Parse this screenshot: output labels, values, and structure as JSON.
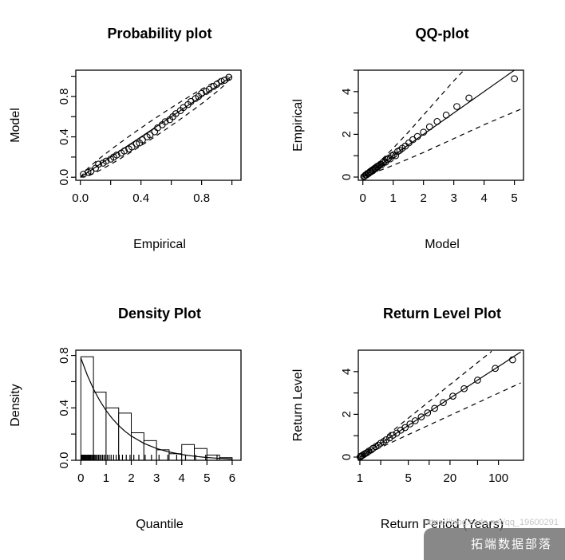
{
  "colors": {
    "foreground": "#000000",
    "background": "#ffffff",
    "watermark_bg": "#6e6e6e",
    "watermark_text": "#ffffff",
    "url_text": "#c6c6c6"
  },
  "watermark": {
    "brand": "拓端数据部落",
    "url": "https://blog.csdn.net/qq_19600291"
  },
  "chart_data": [
    {
      "id": "probability-plot",
      "type": "scatter",
      "title": "Probability plot",
      "xlabel": "Empirical",
      "ylabel": "Model",
      "xlim": [
        -0.03,
        1.06
      ],
      "ylim": [
        -0.03,
        1.06
      ],
      "grid": false,
      "legend": "none",
      "xticks": [
        {
          "v": 0.0,
          "l": "0.0"
        },
        {
          "v": 0.2,
          "l": ""
        },
        {
          "v": 0.4,
          "l": "0.4"
        },
        {
          "v": 0.6,
          "l": ""
        },
        {
          "v": 0.8,
          "l": "0.8"
        },
        {
          "v": 1.0,
          "l": ""
        }
      ],
      "yticks": [
        {
          "v": 0.0,
          "l": "0.0"
        },
        {
          "v": 0.2,
          "l": ""
        },
        {
          "v": 0.4,
          "l": "0.4"
        },
        {
          "v": 0.6,
          "l": ""
        },
        {
          "v": 0.8,
          "l": "0.8"
        },
        {
          "v": 1.0,
          "l": ""
        }
      ],
      "lines": [
        {
          "name": "one-to-one-line",
          "style": "solid",
          "x": [
            0,
            1
          ],
          "y": [
            0,
            1
          ]
        },
        {
          "name": "upper-band",
          "style": "dashed",
          "x": [
            0,
            0.05,
            0.1,
            0.15,
            0.2,
            0.25,
            0.3,
            0.35,
            0.4,
            0.45,
            0.5,
            0.55,
            0.6,
            0.65,
            0.7,
            0.75,
            0.8,
            0.85,
            0.9,
            0.95,
            1
          ],
          "y": [
            0,
            0.089,
            0.154,
            0.214,
            0.272,
            0.328,
            0.382,
            0.436,
            0.488,
            0.54,
            0.59,
            0.64,
            0.688,
            0.736,
            0.782,
            0.828,
            0.872,
            0.914,
            0.954,
            0.989,
            1
          ]
        },
        {
          "name": "lower-band",
          "style": "dashed",
          "x": [
            0,
            0.05,
            0.1,
            0.15,
            0.2,
            0.25,
            0.3,
            0.35,
            0.4,
            0.45,
            0.5,
            0.55,
            0.6,
            0.65,
            0.7,
            0.75,
            0.8,
            0.85,
            0.9,
            0.95,
            1
          ],
          "y": [
            0,
            0.011,
            0.046,
            0.086,
            0.128,
            0.172,
            0.218,
            0.264,
            0.312,
            0.36,
            0.41,
            0.46,
            0.512,
            0.564,
            0.618,
            0.672,
            0.728,
            0.786,
            0.846,
            0.911,
            1
          ]
        }
      ],
      "points": {
        "x": [
          0.02,
          0.05,
          0.07,
          0.1,
          0.12,
          0.15,
          0.17,
          0.2,
          0.22,
          0.24,
          0.27,
          0.29,
          0.32,
          0.34,
          0.37,
          0.39,
          0.41,
          0.44,
          0.46,
          0.49,
          0.51,
          0.54,
          0.56,
          0.59,
          0.61,
          0.63,
          0.66,
          0.68,
          0.71,
          0.73,
          0.76,
          0.78,
          0.8,
          0.83,
          0.85,
          0.88,
          0.9,
          0.93,
          0.95,
          0.98
        ],
        "y": [
          0.03,
          0.05,
          0.06,
          0.09,
          0.13,
          0.14,
          0.16,
          0.18,
          0.2,
          0.22,
          0.24,
          0.26,
          0.28,
          0.3,
          0.33,
          0.34,
          0.37,
          0.4,
          0.42,
          0.45,
          0.49,
          0.52,
          0.55,
          0.57,
          0.6,
          0.63,
          0.66,
          0.69,
          0.72,
          0.75,
          0.78,
          0.8,
          0.83,
          0.85,
          0.87,
          0.9,
          0.92,
          0.95,
          0.96,
          0.99
        ]
      }
    },
    {
      "id": "qq-plot",
      "type": "scatter",
      "title": "QQ-plot",
      "xlabel": "Model",
      "ylabel": "Empirical",
      "xlim": [
        -0.15,
        5.3
      ],
      "ylim": [
        -0.15,
        5.0
      ],
      "grid": false,
      "legend": "none",
      "xticks": [
        {
          "v": 0,
          "l": "0"
        },
        {
          "v": 1,
          "l": "1"
        },
        {
          "v": 2,
          "l": "2"
        },
        {
          "v": 3,
          "l": "3"
        },
        {
          "v": 4,
          "l": "4"
        },
        {
          "v": 5,
          "l": "5"
        }
      ],
      "yticks": [
        {
          "v": 0,
          "l": "0"
        },
        {
          "v": 1,
          "l": ""
        },
        {
          "v": 2,
          "l": "2"
        },
        {
          "v": 3,
          "l": ""
        },
        {
          "v": 4,
          "l": "4"
        },
        {
          "v": 5,
          "l": ""
        }
      ],
      "lines": [
        {
          "name": "one-to-one-line",
          "style": "solid",
          "x": [
            0,
            5.0
          ],
          "y": [
            0,
            5.0
          ]
        },
        {
          "name": "upper-band",
          "style": "dashed",
          "x": [
            0,
            0.5,
            1,
            1.5,
            2,
            2.5,
            3,
            3.3
          ],
          "y": [
            0,
            0.65,
            1.35,
            2.1,
            2.9,
            3.7,
            4.5,
            4.95
          ]
        },
        {
          "name": "lower-band",
          "style": "dashed",
          "x": [
            0,
            1,
            2,
            3,
            4,
            5,
            5.25
          ],
          "y": [
            0,
            0.55,
            1.15,
            1.8,
            2.45,
            3.05,
            3.2
          ]
        }
      ],
      "points": {
        "x": [
          0.03,
          0.06,
          0.09,
          0.12,
          0.15,
          0.18,
          0.21,
          0.24,
          0.27,
          0.3,
          0.33,
          0.36,
          0.4,
          0.43,
          0.47,
          0.5,
          0.54,
          0.58,
          0.62,
          0.66,
          0.7,
          0.75,
          0.8,
          0.85,
          0.9,
          0.96,
          1.02,
          1.08,
          1.15,
          1.22,
          1.3,
          1.4,
          1.52,
          1.65,
          1.8,
          2.0,
          2.2,
          2.45,
          2.75,
          3.1,
          3.5,
          5.0
        ],
        "y": [
          0.02,
          0.05,
          0.1,
          0.1,
          0.17,
          0.16,
          0.2,
          0.26,
          0.25,
          0.32,
          0.3,
          0.38,
          0.42,
          0.4,
          0.5,
          0.48,
          0.55,
          0.6,
          0.58,
          0.68,
          0.72,
          0.7,
          0.82,
          0.88,
          0.85,
          1.0,
          1.05,
          1.0,
          1.2,
          1.25,
          1.35,
          1.45,
          1.6,
          1.75,
          1.9,
          2.1,
          2.35,
          2.6,
          2.9,
          3.3,
          3.7,
          4.6
        ]
      }
    },
    {
      "id": "density-plot",
      "type": "histogram",
      "title": "Density Plot",
      "xlabel": "Quantile",
      "ylabel": "Density",
      "xlim": [
        -0.2,
        6.35
      ],
      "ylim": [
        0,
        0.84
      ],
      "grid": false,
      "legend": "none",
      "xticks": [
        {
          "v": 0,
          "l": "0"
        },
        {
          "v": 1,
          "l": "1"
        },
        {
          "v": 2,
          "l": "2"
        },
        {
          "v": 3,
          "l": "3"
        },
        {
          "v": 4,
          "l": "4"
        },
        {
          "v": 5,
          "l": "5"
        },
        {
          "v": 6,
          "l": "6"
        }
      ],
      "yticks": [
        {
          "v": 0.0,
          "l": "0.0"
        },
        {
          "v": 0.2,
          "l": ""
        },
        {
          "v": 0.4,
          "l": "0.4"
        },
        {
          "v": 0.6,
          "l": ""
        },
        {
          "v": 0.8,
          "l": "0.8"
        }
      ],
      "bars": {
        "start": 0,
        "bin_width": 0.5,
        "heights": [
          0.79,
          0.52,
          0.4,
          0.36,
          0.21,
          0.15,
          0.08,
          0.05,
          0.12,
          0.09,
          0.04,
          0.02
        ]
      },
      "lines": [
        {
          "name": "density-curve",
          "style": "solid",
          "x": [
            0,
            0.25,
            0.5,
            0.75,
            1,
            1.25,
            1.5,
            1.75,
            2,
            2.5,
            3,
            3.5,
            4,
            4.5,
            5,
            5.5,
            6
          ],
          "y": [
            0.78,
            0.652,
            0.544,
            0.455,
            0.38,
            0.317,
            0.265,
            0.221,
            0.185,
            0.129,
            0.09,
            0.063,
            0.044,
            0.031,
            0.021,
            0.015,
            0.01
          ]
        }
      ],
      "rug": [
        0.02,
        0.04,
        0.06,
        0.08,
        0.1,
        0.12,
        0.14,
        0.16,
        0.18,
        0.2,
        0.22,
        0.25,
        0.28,
        0.31,
        0.34,
        0.37,
        0.4,
        0.44,
        0.48,
        0.52,
        0.56,
        0.6,
        0.65,
        0.7,
        0.75,
        0.8,
        0.86,
        0.92,
        0.98,
        1.05,
        1.12,
        1.2,
        1.3,
        1.4,
        1.52,
        1.65,
        1.8,
        1.95,
        2.1,
        2.3,
        2.55,
        2.8,
        3.1,
        3.45,
        3.8,
        4.15,
        4.55,
        4.95,
        5.4
      ]
    },
    {
      "id": "return-level-plot",
      "type": "scatter",
      "title": "Return Level Plot",
      "xlabel": "Return Period (Years)",
      "ylabel": "Return Level",
      "xlog": true,
      "xlim": [
        0.95,
        230
      ],
      "ylim": [
        -0.15,
        5.0
      ],
      "grid": false,
      "legend": "none",
      "xticks": [
        {
          "v": 1,
          "l": "1"
        },
        {
          "v": 2,
          "l": ""
        },
        {
          "v": 5,
          "l": "5"
        },
        {
          "v": 10,
          "l": ""
        },
        {
          "v": 20,
          "l": "20"
        },
        {
          "v": 50,
          "l": ""
        },
        {
          "v": 100,
          "l": "100"
        }
      ],
      "yticks": [
        {
          "v": 0,
          "l": "0"
        },
        {
          "v": 1,
          "l": ""
        },
        {
          "v": 2,
          "l": "2"
        },
        {
          "v": 3,
          "l": ""
        },
        {
          "v": 4,
          "l": "4"
        }
      ],
      "lines": [
        {
          "name": "fitted-return-level",
          "style": "solid",
          "x": [
            1.0,
            1.5,
            2,
            3,
            5,
            8,
            15,
            30,
            60,
            120,
            210
          ],
          "y": [
            0,
            0.37,
            0.64,
            1.01,
            1.48,
            1.91,
            2.49,
            3.13,
            3.77,
            4.4,
            4.92
          ]
        },
        {
          "name": "upper-confidence",
          "style": "dashed",
          "x": [
            1.0,
            2,
            5,
            10,
            20,
            40,
            80
          ],
          "y": [
            0,
            0.78,
            1.82,
            2.6,
            3.39,
            4.17,
            4.95
          ]
        },
        {
          "name": "lower-confidence",
          "style": "dashed",
          "x": [
            1.0,
            2,
            5,
            10,
            20,
            50,
            100,
            210
          ],
          "y": [
            0,
            0.45,
            1.05,
            1.5,
            1.95,
            2.54,
            2.99,
            3.47
          ]
        }
      ],
      "points": {
        "x": [
          1.01,
          1.03,
          1.06,
          1.1,
          1.15,
          1.2,
          1.27,
          1.35,
          1.45,
          1.55,
          1.7,
          1.85,
          2.0,
          2.2,
          2.4,
          2.7,
          3.0,
          3.4,
          3.9,
          4.5,
          5.3,
          6.3,
          7.7,
          9.5,
          12,
          16,
          22,
          32,
          50,
          90,
          160
        ],
        "y": [
          0.01,
          0.03,
          0.06,
          0.09,
          0.13,
          0.17,
          0.21,
          0.28,
          0.33,
          0.41,
          0.49,
          0.56,
          0.65,
          0.72,
          0.81,
          0.9,
          1.02,
          1.12,
          1.26,
          1.38,
          1.55,
          1.7,
          1.88,
          2.07,
          2.28,
          2.55,
          2.85,
          3.2,
          3.6,
          4.15,
          4.55
        ]
      }
    }
  ]
}
